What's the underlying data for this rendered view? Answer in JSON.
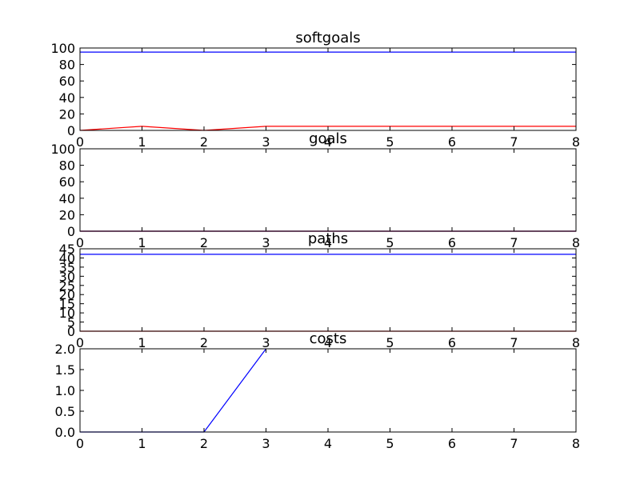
{
  "chart_data": [
    {
      "type": "line",
      "title": "softgoals",
      "xlabel": "",
      "ylabel": "",
      "xlim": [
        0,
        8
      ],
      "ylim": [
        0,
        100
      ],
      "x_ticks": [
        "0",
        "1",
        "2",
        "3",
        "4",
        "5",
        "6",
        "7",
        "8"
      ],
      "y_ticks": [
        "0",
        "20",
        "40",
        "60",
        "80",
        "100"
      ],
      "y_tick_values": [
        0,
        20,
        40,
        60,
        80,
        100
      ],
      "grid": false,
      "series": [
        {
          "color": "#0000ff",
          "x": [
            0,
            1,
            2,
            3,
            4,
            5,
            6,
            7,
            8
          ],
          "y": [
            95,
            95,
            95,
            95,
            95,
            95,
            95,
            95,
            95
          ]
        },
        {
          "color": "#ff0000",
          "x": [
            0,
            1,
            2,
            3,
            4,
            5,
            6,
            7,
            8
          ],
          "y": [
            0,
            5,
            0,
            5,
            5,
            5,
            5,
            5,
            5
          ]
        }
      ]
    },
    {
      "type": "line",
      "title": "goals",
      "xlabel": "",
      "ylabel": "",
      "xlim": [
        0,
        8
      ],
      "ylim": [
        0,
        100
      ],
      "x_ticks": [
        "0",
        "1",
        "2",
        "3",
        "4",
        "5",
        "6",
        "7",
        "8"
      ],
      "y_ticks": [
        "0",
        "20",
        "40",
        "60",
        "80",
        "100"
      ],
      "y_tick_values": [
        0,
        20,
        40,
        60,
        80,
        100
      ],
      "grid": false,
      "series": [
        {
          "color": "#0000ff",
          "x": [
            0,
            1,
            2,
            3,
            4,
            5,
            6,
            7,
            8
          ],
          "y": [
            0,
            0,
            0,
            0,
            0,
            0,
            0,
            0,
            0
          ]
        },
        {
          "color": "#ff0000",
          "x": [
            0,
            1,
            2,
            3,
            4,
            5,
            6,
            7,
            8
          ],
          "y": [
            0,
            0,
            0,
            0,
            0,
            0,
            0,
            0,
            0
          ]
        }
      ]
    },
    {
      "type": "line",
      "title": "paths",
      "xlabel": "",
      "ylabel": "",
      "xlim": [
        0,
        8
      ],
      "ylim": [
        0,
        45
      ],
      "x_ticks": [
        "0",
        "1",
        "2",
        "3",
        "4",
        "5",
        "6",
        "7",
        "8"
      ],
      "y_ticks": [
        "0",
        "5",
        "10",
        "15",
        "20",
        "25",
        "30",
        "35",
        "40",
        "45"
      ],
      "y_tick_values": [
        0,
        5,
        10,
        15,
        20,
        25,
        30,
        35,
        40,
        45
      ],
      "grid": false,
      "series": [
        {
          "color": "#0000ff",
          "x": [
            0,
            1,
            2,
            3,
            4,
            5,
            6,
            7,
            8
          ],
          "y": [
            42,
            42,
            42,
            42,
            42,
            42,
            42,
            42,
            42
          ]
        },
        {
          "color": "#ff0000",
          "x": [
            0,
            1,
            2,
            3,
            4,
            5,
            6,
            7,
            8
          ],
          "y": [
            0,
            0,
            0,
            0,
            0,
            0,
            0,
            0,
            0
          ]
        }
      ]
    },
    {
      "type": "line",
      "title": "costs",
      "xlabel": "",
      "ylabel": "",
      "xlim": [
        0,
        8
      ],
      "ylim": [
        0,
        2
      ],
      "x_ticks": [
        "0",
        "1",
        "2",
        "3",
        "4",
        "5",
        "6",
        "7",
        "8"
      ],
      "y_ticks": [
        "0.0",
        "0.5",
        "1.0",
        "1.5",
        "2.0"
      ],
      "y_tick_values": [
        0,
        0.5,
        1,
        1.5,
        2
      ],
      "grid": false,
      "series": [
        {
          "color": "#0000ff",
          "x": [
            0,
            1,
            2,
            3
          ],
          "y": [
            0,
            0,
            0,
            2
          ]
        }
      ]
    }
  ]
}
